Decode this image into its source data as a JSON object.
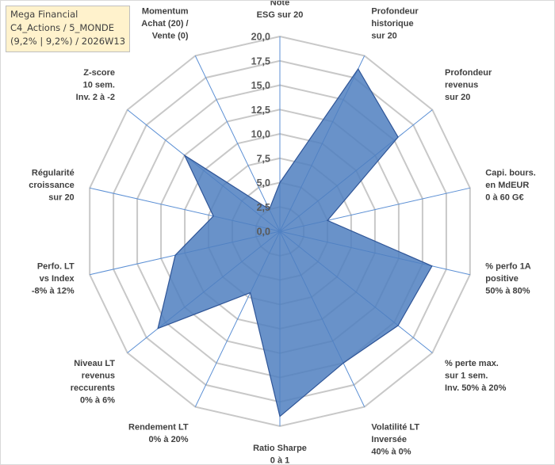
{
  "header": {
    "line1": "Mega Financial",
    "line2": "C4_Actions / 5_MONDE",
    "line3": "(9,2% | 9,2%) / 2026W13"
  },
  "colors": {
    "series_fill": "#4f7fc0",
    "series_stroke": "#2f5597",
    "grid": "#c8c8c8",
    "spoke": "#5b8fd4",
    "header_bg": "#fff2cc"
  },
  "chart_data": {
    "type": "radar",
    "title": "",
    "rmin": 0,
    "rmax": 20,
    "ticks": [
      "0,0",
      "2,5",
      "5,0",
      "7,5",
      "10,0",
      "12,5",
      "15,0",
      "17,5",
      "20,0"
    ],
    "axes": [
      {
        "label": [
          "Note",
          "ESG sur 20"
        ],
        "value": 5.0
      },
      {
        "label": [
          "Profondeur",
          "historique",
          "sur 20"
        ],
        "value": 18.5
      },
      {
        "label": [
          "Profondeur",
          "revenus",
          "sur 20"
        ],
        "value": 15.5
      },
      {
        "label": [
          "Capi. bours.",
          "en MdEUR",
          "0 à 60 G€"
        ],
        "value": 5.0
      },
      {
        "label": [
          "% perfo 1A",
          "positive",
          "50% à 80%"
        ],
        "value": 16.0
      },
      {
        "label": [
          "% perte max.",
          "sur 1 sem.",
          "Inv. 50% à 20%"
        ],
        "value": 15.5
      },
      {
        "label": [
          "Volatilité LT",
          "Inversée",
          "40% à 0%"
        ],
        "value": 15.0
      },
      {
        "label": [
          "Ratio Sharpe",
          "0 à 1"
        ],
        "value": 19.0
      },
      {
        "label": [
          "Rendement LT",
          "0% à 20%"
        ],
        "value": 7.0
      },
      {
        "label": [
          "Niveau LT",
          "revenus",
          "reccurents",
          "0% à 6%"
        ],
        "value": 16.0
      },
      {
        "label": [
          "Perfo. LT",
          "vs Index",
          "-8% à 12%"
        ],
        "value": 11.0
      },
      {
        "label": [
          "Régularité",
          "croissance",
          "sur 20"
        ],
        "value": 7.0
      },
      {
        "label": [
          "Z-score",
          "10 sem.",
          "Inv. 2 à -2"
        ],
        "value": 12.5
      },
      {
        "label": [
          "Momentum",
          "Achat (20) /",
          "Vente (0)"
        ],
        "value": 2.5
      }
    ],
    "series": [
      {
        "name": "Mega Financial",
        "values": [
          5.0,
          18.5,
          15.5,
          5.0,
          16.0,
          15.5,
          15.0,
          19.0,
          7.0,
          16.0,
          11.0,
          7.0,
          12.5,
          2.5
        ]
      }
    ]
  }
}
